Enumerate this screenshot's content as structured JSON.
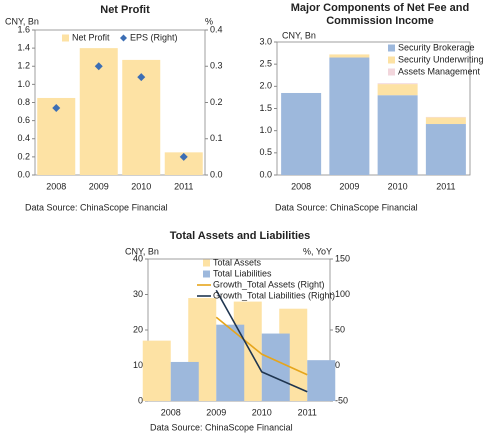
{
  "chart_data": [
    {
      "type": "bar",
      "title": "Net Profit",
      "ylabel": "CNY, Bn",
      "y2label": "%",
      "categories": [
        "2008",
        "2009",
        "2010",
        "2011"
      ],
      "series": [
        {
          "name": "Net Profit",
          "type": "bar",
          "color": "#fde2a4",
          "values": [
            0.85,
            1.4,
            1.27,
            0.25
          ]
        },
        {
          "name": "EPS (Right)",
          "type": "scatter",
          "axis": "y2",
          "color": "#3c6eb4",
          "values": [
            0.185,
            0.3,
            0.27,
            0.05
          ]
        }
      ],
      "ylim": [
        0,
        1.6
      ],
      "yticks": [
        {
          "value": 0,
          "label": "0.0"
        },
        0.2,
        0.4,
        0.6,
        0.8,
        {
          "value": 1,
          "label": "1.0"
        },
        1.2,
        1.4,
        1.6
      ],
      "y2lim": [
        0,
        0.4
      ],
      "y2ticks": [
        {
          "value": 0,
          "label": "0.0"
        },
        0.1,
        0.2,
        0.3,
        0.4
      ],
      "source": "Data Source: ChinaScope Financial"
    },
    {
      "type": "stacked_bar",
      "title": "Major Components of Net Fee and Commission Income",
      "ylabel": "CNY, Bn",
      "categories": [
        "2008",
        "2009",
        "2010",
        "2011"
      ],
      "series": [
        {
          "name": "Security Brokerage",
          "type": "bar",
          "color": "#9db8dc",
          "values": [
            1.85,
            2.65,
            1.8,
            1.15
          ]
        },
        {
          "name": "Security Underwriting",
          "type": "bar",
          "color": "#fde2a4",
          "values": [
            0,
            0.07,
            0.25,
            0.15
          ]
        },
        {
          "name": "Assets Management",
          "type": "bar",
          "color": "#f2d6dc",
          "values": [
            0,
            0,
            0.02,
            0.01
          ]
        }
      ],
      "ylim": [
        0,
        3
      ],
      "yticks": [
        {
          "value": 0,
          "label": "0.0"
        },
        0.5,
        {
          "value": 1,
          "label": "1.0"
        },
        1.5,
        {
          "value": 2,
          "label": "2.0"
        },
        2.5,
        {
          "value": 3,
          "label": "3.0"
        }
      ],
      "source": "Data Source: ChinaScope Financial"
    },
    {
      "type": "bar",
      "title": "Total Assets and Liabilities",
      "ylabel": "CNY, Bn",
      "y2label": "%, YoY",
      "categories": [
        "2008",
        "2009",
        "2010",
        "2011"
      ],
      "series": [
        {
          "name": "Total Assets",
          "type": "bar",
          "color": "#fde2a4",
          "values": [
            17,
            29,
            28,
            26
          ]
        },
        {
          "name": "Total Liabilities",
          "type": "bar",
          "color": "#9db8dc",
          "values": [
            11,
            21.5,
            19,
            11.5
          ]
        },
        {
          "name": "Growth_Total Assets (Right)",
          "type": "line",
          "axis": "y2",
          "color": "#e6a51c",
          "values": [
            null,
            68,
            16,
            -13
          ]
        },
        {
          "name": "Growth_Total Liabilities (Right)",
          "type": "line",
          "axis": "y2",
          "color": "#1f3550",
          "values": [
            null,
            106,
            -9,
            -37
          ]
        }
      ],
      "ylim": [
        0,
        40
      ],
      "yticks": [
        0,
        10,
        20,
        30,
        40
      ],
      "y2lim": [
        -50,
        150
      ],
      "y2ticks": [
        -50,
        0,
        50,
        100,
        150
      ],
      "source": "Data Source: ChinaScope Financial"
    }
  ]
}
